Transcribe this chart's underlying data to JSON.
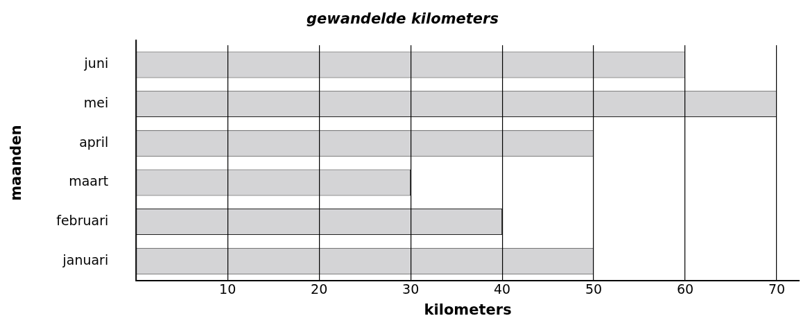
{
  "chart_data": {
    "type": "bar",
    "orientation": "horizontal",
    "title": "gewandelde kilometers",
    "xlabel": "kilometers",
    "ylabel": "maanden",
    "categories": [
      "juni",
      "mei",
      "april",
      "maart",
      "februari",
      "januari"
    ],
    "values": [
      60,
      70,
      50,
      30,
      40,
      50
    ],
    "color": "#d4d4d6",
    "xlim": [
      0,
      72.5
    ],
    "xticks": [
      10,
      20,
      30,
      40,
      50,
      60,
      70
    ],
    "grid": "x",
    "legend": false
  }
}
